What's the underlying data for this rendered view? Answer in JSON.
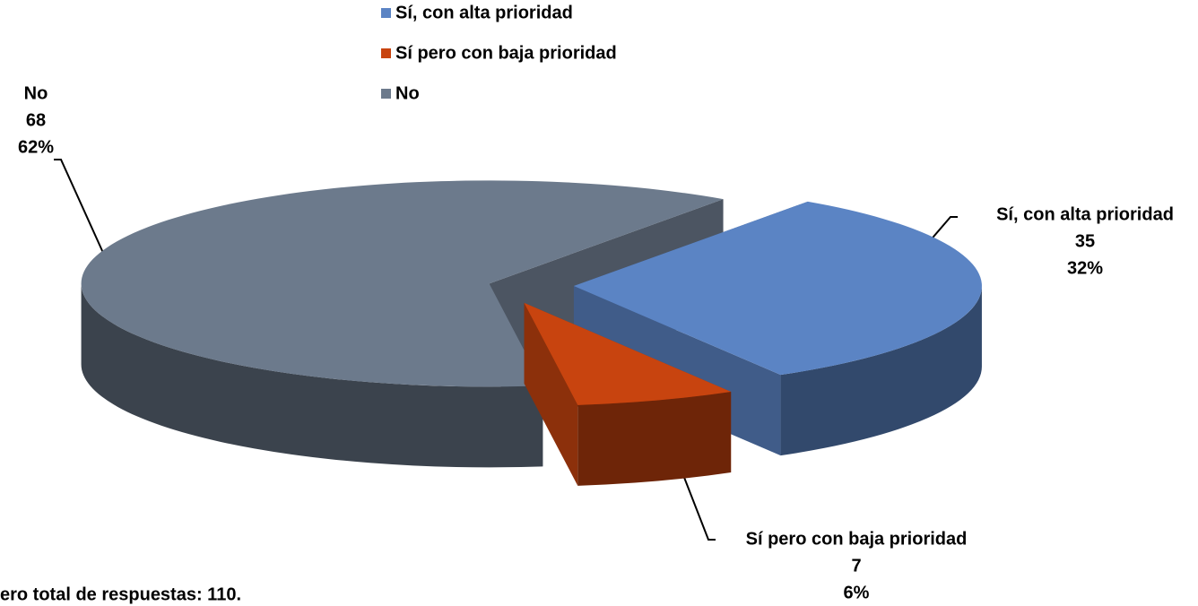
{
  "chart_data": {
    "type": "pie3d",
    "categories": [
      "Sí, con alta prioridad",
      "Sí pero con baja prioridad",
      "No"
    ],
    "values": [
      35,
      7,
      68
    ],
    "percent_labels": [
      "32%",
      "6%",
      "62%"
    ],
    "colors": [
      "#5b84c4",
      "#c8440f",
      "#6c7a8c"
    ],
    "legend": "top",
    "footnote": "ero total de respuestas:   110."
  }
}
